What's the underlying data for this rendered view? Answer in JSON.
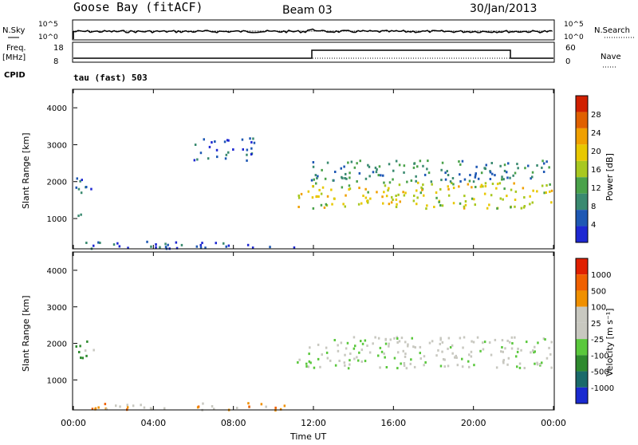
{
  "header": {
    "station": "Goose Bay (fitACF)",
    "beam": "Beam 03",
    "date": "30/Jan/2013"
  },
  "ops_panels": {
    "nsky_label": "N.Sky",
    "nsearch_label": "N.Search",
    "noise_top": "10^5",
    "noise_bottom": "10^0",
    "freq_label": "Freq.",
    "freq_unit": "[MHz]",
    "freq_ticks": [
      "18",
      "8"
    ],
    "nave_label": "Nave",
    "nave_ticks": [
      "60",
      "0"
    ],
    "cpid_label": "CPID",
    "cpid_value": "tau (fast) 503"
  },
  "chart_data": [
    {
      "type": "heatmap",
      "title": "",
      "ylabel": "Slant Range [km]",
      "xlabel": "Time UT",
      "x_ticks": [
        "00:00",
        "04:00",
        "08:00",
        "12:00",
        "16:00",
        "20:00",
        "00:00"
      ],
      "y_ticks": [
        "1000",
        "2000",
        "3000",
        "4000"
      ],
      "ylim": [
        180,
        4500
      ],
      "colorbar": {
        "label": "Power [dB]",
        "ticks": [
          "4",
          "8",
          "12",
          "16",
          "20",
          "24",
          "28"
        ],
        "colors": [
          "#1e28d2",
          "#1e58b4",
          "#3a8a70",
          "#4aa24a",
          "#a8c820",
          "#e8c800",
          "#f0a000",
          "#e06000",
          "#d02000"
        ]
      },
      "regions": [
        {
          "t": [
            0.1,
            1.0
          ],
          "r": [
            1600,
            2200
          ],
          "level": 0.2
        },
        {
          "t": [
            0.2,
            0.9
          ],
          "r": [
            1050,
            1200
          ],
          "level": 0.15
        },
        {
          "t": [
            6.0,
            9.0
          ],
          "r": [
            2600,
            3200
          ],
          "level": 0.1
        },
        {
          "t": [
            11.0,
            24.0
          ],
          "r": [
            1300,
            2000
          ],
          "level": 0.55
        },
        {
          "t": [
            11.5,
            24.0
          ],
          "r": [
            2000,
            2600
          ],
          "level": 0.25
        },
        {
          "t": [
            0.5,
            11.0
          ],
          "r": [
            200,
            400
          ],
          "level": 0.1
        }
      ]
    },
    {
      "type": "heatmap",
      "title": "",
      "ylabel": "Slant Range [km]",
      "xlabel": "Time UT",
      "x_ticks": [
        "00:00",
        "04:00",
        "08:00",
        "12:00",
        "16:00",
        "20:00",
        "00:00"
      ],
      "y_ticks": [
        "1000",
        "2000",
        "3000",
        "4000"
      ],
      "ylim": [
        180,
        4500
      ],
      "colorbar": {
        "label": "Velocity [m s⁻¹]",
        "ticks": [
          "1000",
          "500",
          "100",
          "25",
          "-25",
          "-100",
          "-500",
          "-1000"
        ],
        "colors": [
          "#1a2ad0",
          "#1a6a6a",
          "#2e8a2e",
          "#5ac83c",
          "#c8c8c0",
          "#c8c8c0",
          "#f09000",
          "#f06000",
          "#e02000"
        ]
      },
      "regions": [
        {
          "t": [
            0.1,
            1.0
          ],
          "r": [
            1600,
            2200
          ],
          "level": 0.4
        },
        {
          "t": [
            11.0,
            24.0
          ],
          "r": [
            1350,
            2200
          ],
          "level": 0.5
        },
        {
          "t": [
            0.5,
            11.0
          ],
          "r": [
            200,
            400
          ],
          "level": 0.7
        }
      ]
    }
  ]
}
